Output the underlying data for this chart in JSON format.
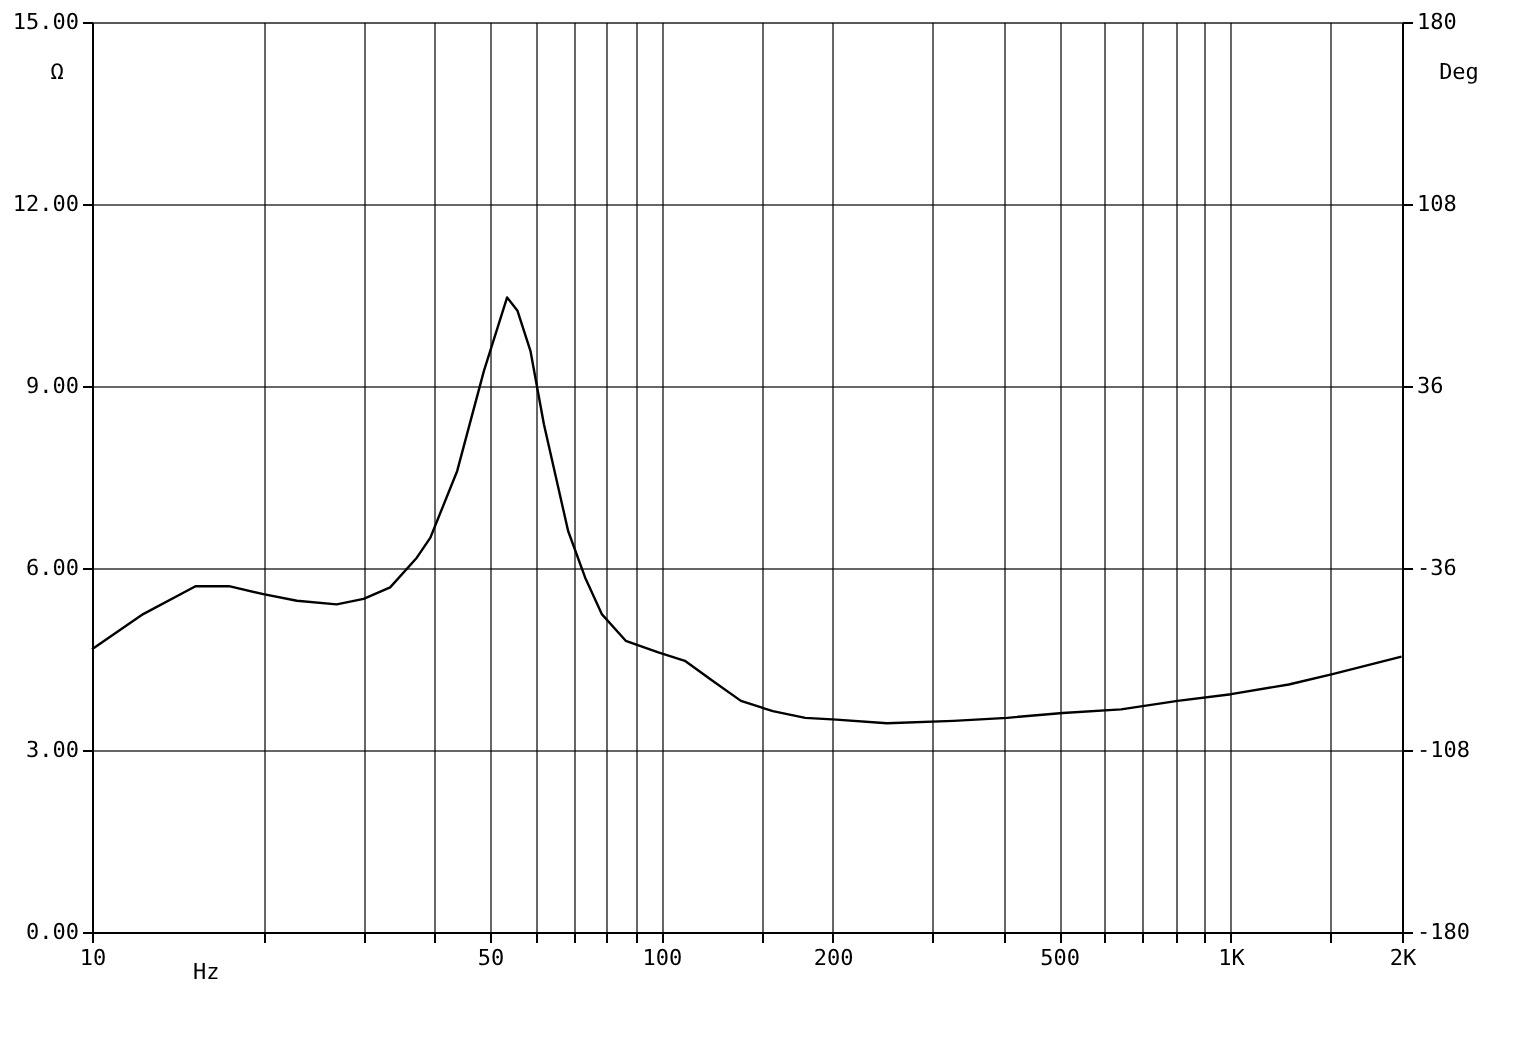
{
  "chart_data": {
    "type": "line",
    "xlabel": "Hz",
    "ylabel": "Ω",
    "y2label": "Deg",
    "log": "x",
    "grid": true,
    "xlim": [
      10,
      2000
    ],
    "xticks": [
      {
        "value": 10,
        "label": "10"
      },
      {
        "value": 20,
        "label": null
      },
      {
        "value": 30,
        "label": null
      },
      {
        "value": 40,
        "label": null
      },
      {
        "value": 50,
        "label": "50"
      },
      {
        "value": 60,
        "label": null
      },
      {
        "value": 70,
        "label": null
      },
      {
        "value": 80,
        "label": null
      },
      {
        "value": 90,
        "label": null
      },
      {
        "value": 100,
        "label": "100"
      },
      {
        "value": 150,
        "label": null
      },
      {
        "value": 200,
        "label": "200"
      },
      {
        "value": 300,
        "label": null
      },
      {
        "value": 400,
        "label": null
      },
      {
        "value": 500,
        "label": "500"
      },
      {
        "value": 600,
        "label": null
      },
      {
        "value": 700,
        "label": null
      },
      {
        "value": 800,
        "label": null
      },
      {
        "value": 900,
        "label": null
      },
      {
        "value": 1000,
        "label": "1K"
      },
      {
        "value": 1500,
        "label": null
      },
      {
        "value": 2000,
        "label": "2K"
      }
    ],
    "ylim": [
      0,
      15
    ],
    "yticks": [
      {
        "value": 0,
        "label": "0.00"
      },
      {
        "value": 3,
        "label": "3.00"
      },
      {
        "value": 6,
        "label": "6.00"
      },
      {
        "value": 9,
        "label": "9.00"
      },
      {
        "value": 12,
        "label": "12.00"
      },
      {
        "value": 15,
        "label": "15.00"
      }
    ],
    "y2lim": [
      -180,
      180
    ],
    "y2ticks": [
      -180,
      -108,
      -36,
      36,
      108,
      180
    ],
    "series": [
      {
        "color": "#000000",
        "x": [
          10,
          12.3,
          15.2,
          17.4,
          20,
          22.9,
          26.9,
          30,
          33.4,
          37.2,
          39.3,
          43.8,
          48.8,
          53.6,
          55.9,
          58.9,
          62.2,
          68.6,
          73.5,
          78.6,
          86.6,
          98.8,
          110,
          123,
          138,
          157,
          179,
          203,
          249,
          326,
          405,
          507,
          642,
          807,
          1002,
          1265,
          1510,
          1996
        ],
        "values": [
          4.66,
          5.24,
          5.7,
          5.7,
          5.57,
          5.46,
          5.4,
          5.49,
          5.68,
          6.17,
          6.5,
          7.6,
          9.25,
          10.46,
          10.24,
          9.58,
          8.37,
          6.61,
          5.84,
          5.24,
          4.8,
          4.61,
          4.47,
          4.14,
          3.81,
          3.64,
          3.53,
          3.5,
          3.44,
          3.48,
          3.53,
          3.61,
          3.67,
          3.81,
          3.92,
          4.08,
          4.25,
          4.54
        ]
      }
    ]
  }
}
